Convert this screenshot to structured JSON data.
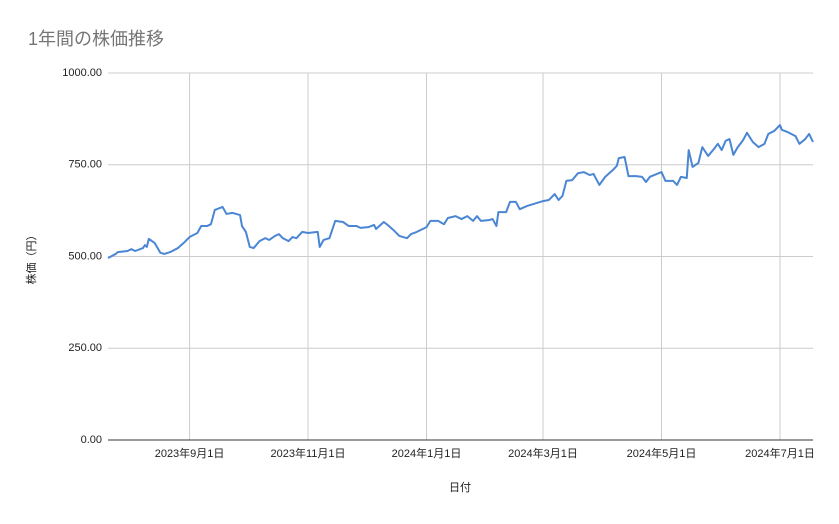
{
  "chart_data": {
    "type": "line",
    "title": "1年間の株価推移",
    "x_label": "日付",
    "y_label": "株価（円）",
    "xlim": [
      "2023-07-21",
      "2024-07-18"
    ],
    "xticks": [
      {
        "value": "2023-09-01",
        "label": "2023年9月1日"
      },
      {
        "value": "2023-11-01",
        "label": "2023年11月1日"
      },
      {
        "value": "2024-01-01",
        "label": "2024年1月1日"
      },
      {
        "value": "2024-03-01",
        "label": "2024年3月1日"
      },
      {
        "value": "2024-05-01",
        "label": "2024年5月1日"
      },
      {
        "value": "2024-07-01",
        "label": "2024年7月1日"
      }
    ],
    "ylim": [
      0,
      1000
    ],
    "yticks": [
      {
        "value": 0,
        "label": "0.00"
      },
      {
        "value": 250,
        "label": "250.00"
      },
      {
        "value": 500,
        "label": "500.00"
      },
      {
        "value": 750,
        "label": "750.00"
      },
      {
        "value": 1000,
        "label": "1000.00"
      }
    ],
    "grid": true,
    "x": [
      "2023-07-21",
      "2023-07-25",
      "2023-07-26",
      "2023-07-31",
      "2023-08-02",
      "2023-08-04",
      "2023-08-08",
      "2023-08-09",
      "2023-08-10",
      "2023-08-11",
      "2023-08-14",
      "2023-08-17",
      "2023-08-19",
      "2023-08-22",
      "2023-08-26",
      "2023-08-29",
      "2023-09-01",
      "2023-09-05",
      "2023-09-07",
      "2023-09-10",
      "2023-09-12",
      "2023-09-14",
      "2023-09-18",
      "2023-09-20",
      "2023-09-23",
      "2023-09-27",
      "2023-09-28",
      "2023-09-30",
      "2023-10-02",
      "2023-10-04",
      "2023-10-07",
      "2023-10-10",
      "2023-10-12",
      "2023-10-15",
      "2023-10-17",
      "2023-10-19",
      "2023-10-22",
      "2023-10-24",
      "2023-10-26",
      "2023-10-29",
      "2023-11-01",
      "2023-11-06",
      "2023-11-07",
      "2023-11-09",
      "2023-11-12",
      "2023-11-15",
      "2023-11-19",
      "2023-11-22",
      "2023-11-26",
      "2023-11-28",
      "2023-12-02",
      "2023-12-05",
      "2023-12-06",
      "2023-12-10",
      "2023-12-12",
      "2023-12-15",
      "2023-12-18",
      "2023-12-22",
      "2023-12-24",
      "2023-12-27",
      "2024-01-01",
      "2024-01-03",
      "2024-01-07",
      "2024-01-10",
      "2024-01-12",
      "2024-01-16",
      "2024-01-19",
      "2024-01-22",
      "2024-01-25",
      "2024-01-27",
      "2024-01-29",
      "2024-02-02",
      "2024-02-04",
      "2024-02-06",
      "2024-02-07",
      "2024-02-11",
      "2024-02-13",
      "2024-02-16",
      "2024-02-18",
      "2024-02-22",
      "2024-02-25",
      "2024-03-01",
      "2024-03-04",
      "2024-03-07",
      "2024-03-09",
      "2024-03-11",
      "2024-03-13",
      "2024-03-16",
      "2024-03-19",
      "2024-03-22",
      "2024-03-25",
      "2024-03-27",
      "2024-03-30",
      "2024-04-02",
      "2024-04-06",
      "2024-04-08",
      "2024-04-09",
      "2024-04-12",
      "2024-04-14",
      "2024-04-18",
      "2024-04-21",
      "2024-04-23",
      "2024-04-25",
      "2024-05-01",
      "2024-05-03",
      "2024-05-07",
      "2024-05-09",
      "2024-05-11",
      "2024-05-14",
      "2024-05-15",
      "2024-05-17",
      "2024-05-20",
      "2024-05-22",
      "2024-05-25",
      "2024-05-28",
      "2024-05-30",
      "2024-06-01",
      "2024-06-03",
      "2024-06-05",
      "2024-06-07",
      "2024-06-09",
      "2024-06-12",
      "2024-06-14",
      "2024-06-17",
      "2024-06-20",
      "2024-06-23",
      "2024-06-25",
      "2024-06-28",
      "2024-07-01",
      "2024-07-02",
      "2024-07-05",
      "2024-07-09",
      "2024-07-11",
      "2024-07-14",
      "2024-07-16",
      "2024-07-18"
    ],
    "series": [
      {
        "color": "#4a86d4",
        "values": [
          496,
          507,
          512,
          515,
          520,
          515,
          523,
          531,
          526,
          548,
          537,
          510,
          507,
          512,
          523,
          537,
          553,
          564,
          583,
          583,
          588,
          627,
          635,
          616,
          619,
          613,
          583,
          567,
          526,
          523,
          542,
          550,
          545,
          556,
          561,
          550,
          542,
          553,
          550,
          567,
          564,
          567,
          526,
          545,
          550,
          597,
          594,
          583,
          583,
          578,
          580,
          586,
          575,
          594,
          586,
          572,
          556,
          550,
          561,
          567,
          580,
          597,
          597,
          588,
          605,
          610,
          602,
          610,
          597,
          610,
          597,
          599,
          602,
          583,
          621,
          621,
          649,
          649,
          629,
          638,
          643,
          651,
          654,
          670,
          654,
          665,
          706,
          708,
          727,
          730,
          722,
          725,
          695,
          717,
          736,
          747,
          768,
          771,
          719,
          719,
          717,
          703,
          717,
          730,
          706,
          706,
          695,
          717,
          714,
          790,
          744,
          755,
          798,
          774,
          793,
          807,
          790,
          815,
          820,
          777,
          796,
          817,
          837,
          812,
          798,
          807,
          834,
          842,
          858,
          845,
          839,
          828,
          807,
          820,
          834,
          812
        ]
      }
    ]
  }
}
